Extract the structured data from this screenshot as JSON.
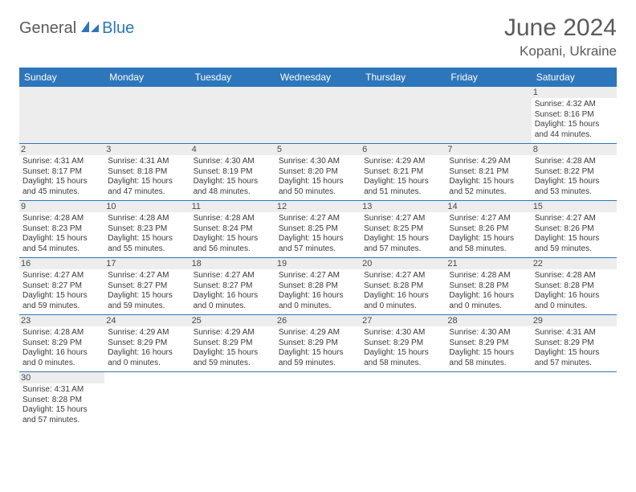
{
  "brand": {
    "general": "General",
    "blue": "Blue"
  },
  "title": {
    "monthYear": "June 2024",
    "location": "Kopani, Ukraine"
  },
  "colors": {
    "headerBg": "#2d76bb",
    "headerText": "#ffffff",
    "dayNumBg": "#ededed",
    "bodyText": "#3a3a3a",
    "titleText": "#5a5a5a"
  },
  "dayNames": [
    "Sunday",
    "Monday",
    "Tuesday",
    "Wednesday",
    "Thursday",
    "Friday",
    "Saturday"
  ],
  "weeks": [
    [
      null,
      null,
      null,
      null,
      null,
      null,
      {
        "n": "1",
        "sr": "Sunrise: 4:32 AM",
        "ss": "Sunset: 8:16 PM",
        "dl": "Daylight: 15 hours and 44 minutes."
      }
    ],
    [
      {
        "n": "2",
        "sr": "Sunrise: 4:31 AM",
        "ss": "Sunset: 8:17 PM",
        "dl": "Daylight: 15 hours and 45 minutes."
      },
      {
        "n": "3",
        "sr": "Sunrise: 4:31 AM",
        "ss": "Sunset: 8:18 PM",
        "dl": "Daylight: 15 hours and 47 minutes."
      },
      {
        "n": "4",
        "sr": "Sunrise: 4:30 AM",
        "ss": "Sunset: 8:19 PM",
        "dl": "Daylight: 15 hours and 48 minutes."
      },
      {
        "n": "5",
        "sr": "Sunrise: 4:30 AM",
        "ss": "Sunset: 8:20 PM",
        "dl": "Daylight: 15 hours and 50 minutes."
      },
      {
        "n": "6",
        "sr": "Sunrise: 4:29 AM",
        "ss": "Sunset: 8:21 PM",
        "dl": "Daylight: 15 hours and 51 minutes."
      },
      {
        "n": "7",
        "sr": "Sunrise: 4:29 AM",
        "ss": "Sunset: 8:21 PM",
        "dl": "Daylight: 15 hours and 52 minutes."
      },
      {
        "n": "8",
        "sr": "Sunrise: 4:28 AM",
        "ss": "Sunset: 8:22 PM",
        "dl": "Daylight: 15 hours and 53 minutes."
      }
    ],
    [
      {
        "n": "9",
        "sr": "Sunrise: 4:28 AM",
        "ss": "Sunset: 8:23 PM",
        "dl": "Daylight: 15 hours and 54 minutes."
      },
      {
        "n": "10",
        "sr": "Sunrise: 4:28 AM",
        "ss": "Sunset: 8:23 PM",
        "dl": "Daylight: 15 hours and 55 minutes."
      },
      {
        "n": "11",
        "sr": "Sunrise: 4:28 AM",
        "ss": "Sunset: 8:24 PM",
        "dl": "Daylight: 15 hours and 56 minutes."
      },
      {
        "n": "12",
        "sr": "Sunrise: 4:27 AM",
        "ss": "Sunset: 8:25 PM",
        "dl": "Daylight: 15 hours and 57 minutes."
      },
      {
        "n": "13",
        "sr": "Sunrise: 4:27 AM",
        "ss": "Sunset: 8:25 PM",
        "dl": "Daylight: 15 hours and 57 minutes."
      },
      {
        "n": "14",
        "sr": "Sunrise: 4:27 AM",
        "ss": "Sunset: 8:26 PM",
        "dl": "Daylight: 15 hours and 58 minutes."
      },
      {
        "n": "15",
        "sr": "Sunrise: 4:27 AM",
        "ss": "Sunset: 8:26 PM",
        "dl": "Daylight: 15 hours and 59 minutes."
      }
    ],
    [
      {
        "n": "16",
        "sr": "Sunrise: 4:27 AM",
        "ss": "Sunset: 8:27 PM",
        "dl": "Daylight: 15 hours and 59 minutes."
      },
      {
        "n": "17",
        "sr": "Sunrise: 4:27 AM",
        "ss": "Sunset: 8:27 PM",
        "dl": "Daylight: 15 hours and 59 minutes."
      },
      {
        "n": "18",
        "sr": "Sunrise: 4:27 AM",
        "ss": "Sunset: 8:27 PM",
        "dl": "Daylight: 16 hours and 0 minutes."
      },
      {
        "n": "19",
        "sr": "Sunrise: 4:27 AM",
        "ss": "Sunset: 8:28 PM",
        "dl": "Daylight: 16 hours and 0 minutes."
      },
      {
        "n": "20",
        "sr": "Sunrise: 4:27 AM",
        "ss": "Sunset: 8:28 PM",
        "dl": "Daylight: 16 hours and 0 minutes."
      },
      {
        "n": "21",
        "sr": "Sunrise: 4:28 AM",
        "ss": "Sunset: 8:28 PM",
        "dl": "Daylight: 16 hours and 0 minutes."
      },
      {
        "n": "22",
        "sr": "Sunrise: 4:28 AM",
        "ss": "Sunset: 8:28 PM",
        "dl": "Daylight: 16 hours and 0 minutes."
      }
    ],
    [
      {
        "n": "23",
        "sr": "Sunrise: 4:28 AM",
        "ss": "Sunset: 8:29 PM",
        "dl": "Daylight: 16 hours and 0 minutes."
      },
      {
        "n": "24",
        "sr": "Sunrise: 4:29 AM",
        "ss": "Sunset: 8:29 PM",
        "dl": "Daylight: 16 hours and 0 minutes."
      },
      {
        "n": "25",
        "sr": "Sunrise: 4:29 AM",
        "ss": "Sunset: 8:29 PM",
        "dl": "Daylight: 15 hours and 59 minutes."
      },
      {
        "n": "26",
        "sr": "Sunrise: 4:29 AM",
        "ss": "Sunset: 8:29 PM",
        "dl": "Daylight: 15 hours and 59 minutes."
      },
      {
        "n": "27",
        "sr": "Sunrise: 4:30 AM",
        "ss": "Sunset: 8:29 PM",
        "dl": "Daylight: 15 hours and 58 minutes."
      },
      {
        "n": "28",
        "sr": "Sunrise: 4:30 AM",
        "ss": "Sunset: 8:29 PM",
        "dl": "Daylight: 15 hours and 58 minutes."
      },
      {
        "n": "29",
        "sr": "Sunrise: 4:31 AM",
        "ss": "Sunset: 8:29 PM",
        "dl": "Daylight: 15 hours and 57 minutes."
      }
    ],
    [
      {
        "n": "30",
        "sr": "Sunrise: 4:31 AM",
        "ss": "Sunset: 8:28 PM",
        "dl": "Daylight: 15 hours and 57 minutes."
      },
      null,
      null,
      null,
      null,
      null,
      null
    ]
  ]
}
